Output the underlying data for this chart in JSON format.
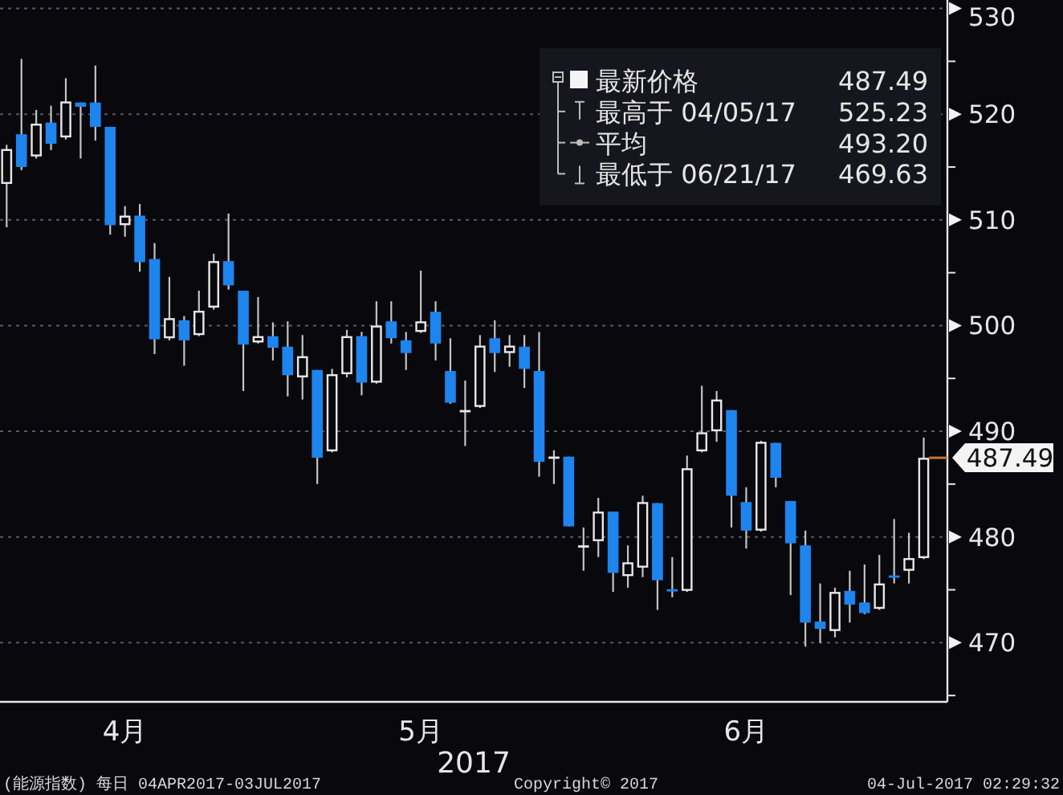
{
  "chart_data": {
    "type": "candlestick",
    "categories": [
      null,
      null,
      null,
      null,
      null,
      null,
      null,
      null,
      "4月",
      null,
      null,
      null,
      null,
      null,
      null,
      null,
      null,
      null,
      null,
      null,
      null,
      null,
      null,
      null,
      null,
      null,
      null,
      null,
      "5月",
      null,
      null,
      null,
      null,
      null,
      null,
      null,
      null,
      null,
      null,
      null,
      null,
      null,
      null,
      null,
      null,
      null,
      null,
      null,
      null,
      null,
      "6月",
      null,
      null,
      null,
      null,
      null,
      null,
      null,
      null,
      null,
      null,
      null,
      null
    ],
    "ohlc": [
      [
        513.4,
        517.1,
        509.3,
        516.7
      ],
      [
        518.1,
        525.23,
        514.7,
        515.0
      ],
      [
        516.0,
        520.4,
        515.8,
        519.1
      ],
      [
        519.2,
        520.8,
        516.6,
        517.2
      ],
      [
        517.8,
        523.4,
        517.6,
        521.2
      ],
      [
        521.1,
        521.1,
        515.8,
        520.7
      ],
      [
        521.1,
        524.6,
        517.5,
        518.8
      ],
      [
        518.8,
        518.8,
        508.6,
        509.5
      ],
      [
        509.5,
        511.3,
        508.4,
        510.4
      ],
      [
        510.4,
        511.5,
        505.1,
        506.0
      ],
      [
        506.3,
        507.8,
        497.3,
        498.7
      ],
      [
        498.8,
        504.6,
        498.6,
        500.7
      ],
      [
        500.5,
        500.9,
        496.2,
        498.6
      ],
      [
        499.1,
        503.3,
        499.0,
        501.4
      ],
      [
        501.7,
        506.8,
        501.5,
        506.1
      ],
      [
        506.1,
        510.6,
        503.4,
        503.8
      ],
      [
        503.3,
        503.3,
        493.8,
        498.2
      ],
      [
        498.4,
        502.7,
        498.3,
        499.0
      ],
      [
        499.0,
        500.3,
        496.7,
        497.9
      ],
      [
        498.0,
        500.4,
        493.3,
        495.3
      ],
      [
        495.1,
        499.1,
        493.0,
        497.1
      ],
      [
        495.8,
        495.8,
        485.0,
        487.5
      ],
      [
        488.1,
        495.9,
        488.0,
        495.4
      ],
      [
        495.4,
        499.6,
        495.1,
        499.0
      ],
      [
        499.0,
        499.4,
        493.4,
        494.6
      ],
      [
        494.6,
        502.3,
        494.5,
        500.0
      ],
      [
        500.4,
        502.3,
        498.3,
        498.8
      ],
      [
        498.6,
        499.4,
        495.8,
        497.4
      ],
      [
        499.4,
        505.2,
        499.3,
        500.4
      ],
      [
        501.3,
        502.3,
        496.7,
        498.3
      ],
      [
        495.7,
        498.8,
        492.6,
        492.7
      ],
      [
        491.9,
        494.8,
        488.6,
        491.9
      ],
      [
        492.3,
        499.1,
        492.2,
        498.1
      ],
      [
        498.8,
        500.5,
        495.6,
        497.4
      ],
      [
        497.4,
        499.1,
        496.1,
        498.1
      ],
      [
        498.0,
        499.1,
        494.1,
        495.9
      ],
      [
        495.7,
        499.4,
        485.7,
        487.1
      ],
      [
        487.5,
        488.2,
        485.0,
        487.5
      ],
      [
        487.6,
        487.6,
        481.0,
        481.0
      ],
      [
        479.1,
        480.9,
        476.8,
        479.1
      ],
      [
        479.6,
        483.7,
        478.1,
        482.4
      ],
      [
        482.4,
        482.4,
        474.8,
        476.6
      ],
      [
        476.3,
        479.2,
        475.2,
        477.6
      ],
      [
        477.1,
        483.9,
        476.2,
        483.3
      ],
      [
        483.2,
        483.2,
        473.1,
        475.9
      ],
      [
        475.0,
        478.1,
        474.3,
        474.9
      ],
      [
        474.9,
        487.7,
        474.8,
        486.5
      ],
      [
        488.1,
        494.3,
        488.0,
        489.9
      ],
      [
        490.0,
        493.8,
        489.0,
        493.0
      ],
      [
        492.0,
        492.0,
        480.9,
        483.9
      ],
      [
        483.3,
        484.7,
        478.9,
        480.6
      ],
      [
        480.6,
        489.1,
        480.5,
        489.0
      ],
      [
        488.9,
        488.9,
        484.7,
        485.6
      ],
      [
        483.4,
        483.4,
        474.5,
        479.4
      ],
      [
        479.2,
        480.6,
        469.63,
        471.9
      ],
      [
        472.0,
        475.6,
        470.0,
        471.3
      ],
      [
        471.1,
        475.2,
        470.5,
        474.8
      ],
      [
        474.9,
        476.8,
        471.9,
        473.6
      ],
      [
        473.8,
        477.4,
        472.7,
        472.8
      ],
      [
        473.2,
        478.3,
        473.1,
        475.6
      ],
      [
        476.3,
        481.7,
        475.6,
        476.2
      ],
      [
        476.8,
        480.4,
        475.6,
        478.0
      ],
      [
        478.0,
        489.4,
        477.9,
        487.49
      ]
    ],
    "colors": [
      "#e8e8e8",
      "#1e84ee",
      "#e8e8e8",
      "#1e84ee",
      "#e8e8e8",
      "#1e84ee",
      "#1e84ee",
      "#1e84ee",
      "#e8e8e8",
      "#1e84ee",
      "#1e84ee",
      "#e8e8e8",
      "#1e84ee",
      "#e8e8e8",
      "#e8e8e8",
      "#1e84ee",
      "#1e84ee",
      "#e8e8e8",
      "#1e84ee",
      "#1e84ee",
      "#e8e8e8",
      "#1e84ee",
      "#e8e8e8",
      "#e8e8e8",
      "#1e84ee",
      "#e8e8e8",
      "#1e84ee",
      "#1e84ee",
      "#e8e8e8",
      "#1e84ee",
      "#1e84ee",
      "#e8e8e8",
      "#e8e8e8",
      "#1e84ee",
      "#e8e8e8",
      "#1e84ee",
      "#1e84ee",
      "#e8e8e8",
      "#1e84ee",
      "#e8e8e8",
      "#e8e8e8",
      "#1e84ee",
      "#e8e8e8",
      "#e8e8e8",
      "#1e84ee",
      "#1e84ee",
      "#e8e8e8",
      "#e8e8e8",
      "#e8e8e8",
      "#1e84ee",
      "#1e84ee",
      "#e8e8e8",
      "#1e84ee",
      "#1e84ee",
      "#1e84ee",
      "#1e84ee",
      "#e8e8e8",
      "#1e84ee",
      "#1e84ee",
      "#e8e8e8",
      "#1e84ee",
      "#e8e8e8",
      "#e8e8e8"
    ],
    "ylim": [
      464.4,
      530.8
    ],
    "yticks": [
      {
        "value": 465,
        "label": null
      },
      470,
      {
        "value": 475,
        "label": null
      },
      480,
      {
        "value": 485,
        "label": null
      },
      490,
      {
        "value": 495,
        "label": null
      },
      500,
      {
        "value": 505,
        "label": null
      },
      510,
      {
        "value": 515,
        "label": null
      },
      520,
      {
        "value": 525,
        "label": null
      },
      530
    ],
    "grid": "y",
    "annotations": [
      "最新价格",
      "487.49",
      "最高于 04/05/17",
      "525.23",
      "平均",
      "493.20",
      "最低于 06/21/17",
      "469.63",
      "487.49",
      "2017",
      "(能源指数) 每日 04APR2017-03JUL2017",
      "Copyright© 2017",
      "04-Jul-2017 02:29:32"
    ]
  }
}
